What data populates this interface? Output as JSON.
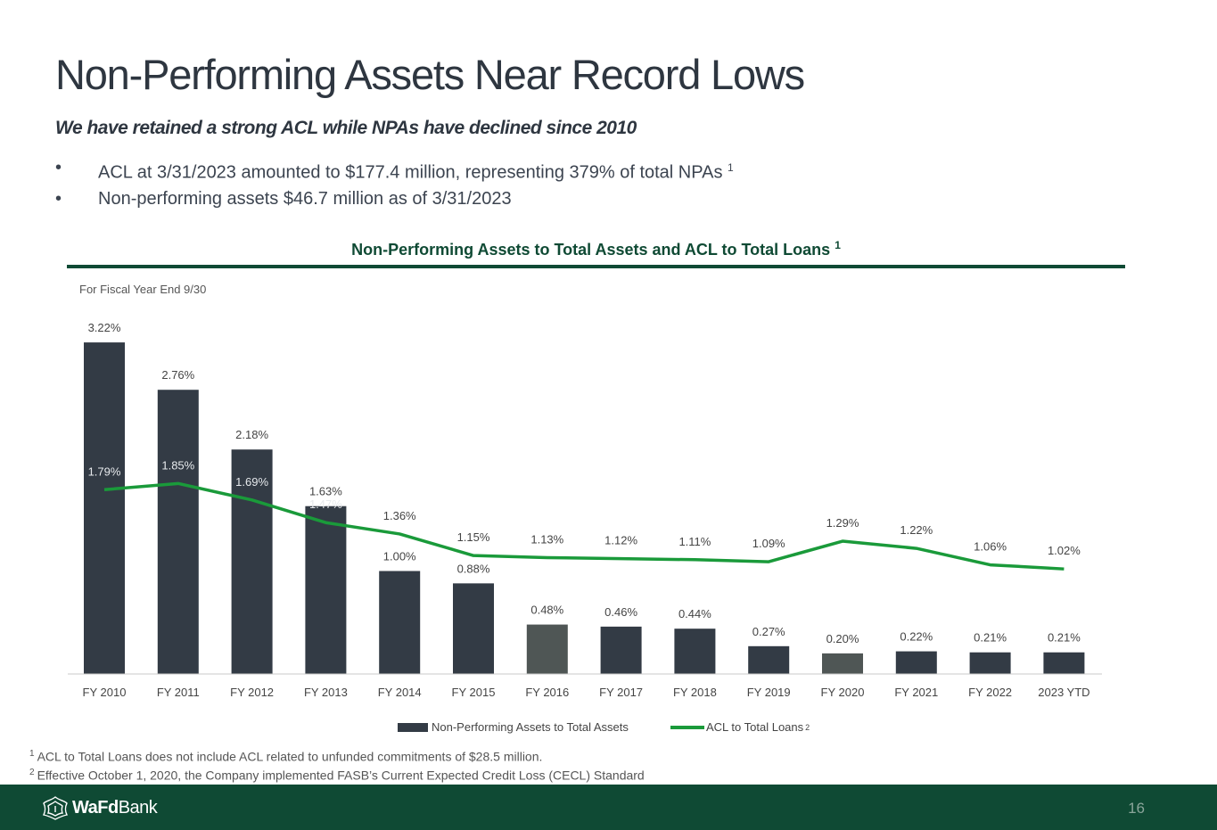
{
  "header": {
    "title": "Non-Performing Assets Near Record Lows",
    "subtitle": "We have retained a strong ACL while NPAs have declined since 2010"
  },
  "bullets": [
    {
      "bullet": "•",
      "text": "ACL at 3/31/2023 amounted to $177.4 million, representing 379% of total NPAs",
      "sup": "1"
    },
    {
      "bullet": "•",
      "text": "Non-performing assets $46.7 million as of 3/31/2023",
      "sup": ""
    }
  ],
  "chart_heading": {
    "text": "Non-Performing Assets to Total Assets and ACL to Total Loans",
    "sup": "1",
    "note": "For Fiscal Year End 9/30"
  },
  "colors": {
    "bar": "#333b45",
    "bar_highlight": "#4f5655",
    "line": "#1a9a3a",
    "brand_green": "#0f4a34"
  },
  "chart_data": {
    "type": "bar",
    "categories": [
      "FY 2010",
      "FY 2011",
      "FY 2012",
      "FY 2013",
      "FY 2014",
      "FY 2015",
      "FY 2016",
      "FY 2017",
      "FY 2018",
      "FY 2019",
      "FY 2020",
      "FY 2021",
      "FY 2022",
      "2023 YTD"
    ],
    "series": [
      {
        "name": "Non-Performing Assets to Total Assets",
        "type": "bar",
        "values": [
          3.22,
          2.76,
          2.18,
          1.63,
          1.0,
          0.88,
          0.48,
          0.46,
          0.44,
          0.27,
          0.2,
          0.22,
          0.21,
          0.21
        ],
        "labels": [
          "3.22%",
          "2.76%",
          "2.18%",
          "1.63%",
          "1.00%",
          "0.88%",
          "0.48%",
          "0.46%",
          "0.44%",
          "0.27%",
          "0.20%",
          "0.22%",
          "0.21%",
          "0.21%"
        ],
        "highlighted": [
          "FY 2016",
          "FY 2020"
        ]
      },
      {
        "name": "ACL to Total Loans",
        "name_sup": "2",
        "type": "line",
        "values": [
          1.79,
          1.85,
          1.69,
          1.47,
          1.36,
          1.15,
          1.13,
          1.12,
          1.11,
          1.09,
          1.29,
          1.22,
          1.06,
          1.02
        ],
        "labels": [
          "1.79%",
          "1.85%",
          "1.69%",
          "1.47%",
          "1.36%",
          "1.15%",
          "1.13%",
          "1.12%",
          "1.11%",
          "1.09%",
          "1.29%",
          "1.22%",
          "1.06%",
          "1.02%"
        ]
      }
    ],
    "ylim": [
      0,
      3.5
    ],
    "grid": false,
    "legend": "bottom-center",
    "xlabel": "",
    "ylabel": ""
  },
  "footnotes": [
    {
      "sup": "1",
      "text": "ACL to Total Loans does not include ACL related to unfunded commitments of $28.5 million."
    },
    {
      "sup": "2",
      "text": "Effective October 1, 2020, the Company implemented FASB’s Current Expected Credit Loss (CECL) Standard"
    }
  ],
  "footer": {
    "logo_bold": "WaFd",
    "logo_regular": "Bank",
    "logo_icon": "wafd-leaf-icon",
    "page_number": "16"
  }
}
